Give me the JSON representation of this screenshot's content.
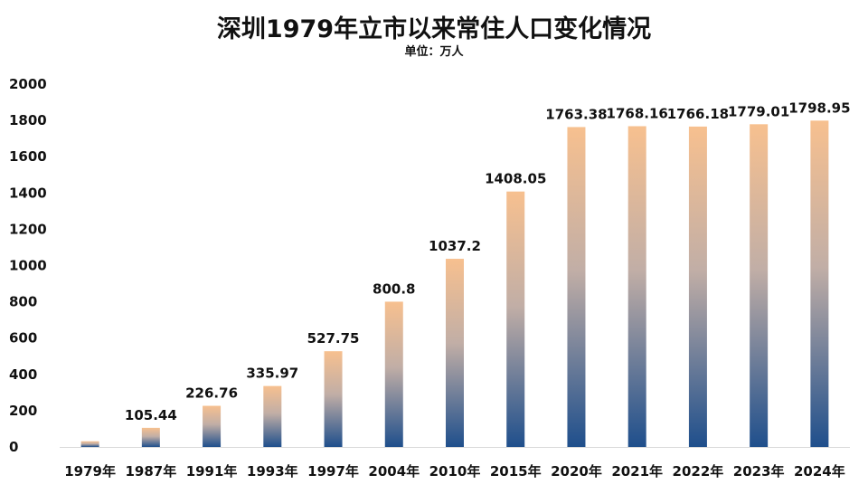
{
  "chart_data": {
    "type": "bar",
    "title": "深圳1979年立市以来常住人口变化情况",
    "subtitle": "单位：万人",
    "xlabel": "",
    "ylabel": "",
    "ylim": [
      0,
      2000
    ],
    "y_ticks": [
      "0",
      "200",
      "400",
      "600",
      "800",
      "1000",
      "1200",
      "1400",
      "1600",
      "1800",
      "2000"
    ],
    "grid": false,
    "categories": [
      "1979年",
      "1987年",
      "1991年",
      "1993年",
      "1997年",
      "2004年",
      "2010年",
      "2015年",
      "2020年",
      "2021年",
      "2022年",
      "2023年",
      "2024年"
    ],
    "values": [
      31.41,
      105.44,
      226.76,
      335.97,
      527.75,
      800.8,
      1037.2,
      1408.05,
      1763.38,
      1768.16,
      1766.18,
      1779.01,
      1798.95
    ],
    "data_labels": [
      "",
      "105.44",
      "226.76",
      "335.97",
      "527.75",
      "800.8",
      "1037.2",
      "1408.05",
      "1763.38",
      "1768.16",
      "1766.18",
      "1779.01",
      "1798.95"
    ],
    "colors": {
      "bar_top": "#f7c08f",
      "bar_mid": "#c1aea6",
      "bar_bottom": "#1f4f8c"
    }
  }
}
